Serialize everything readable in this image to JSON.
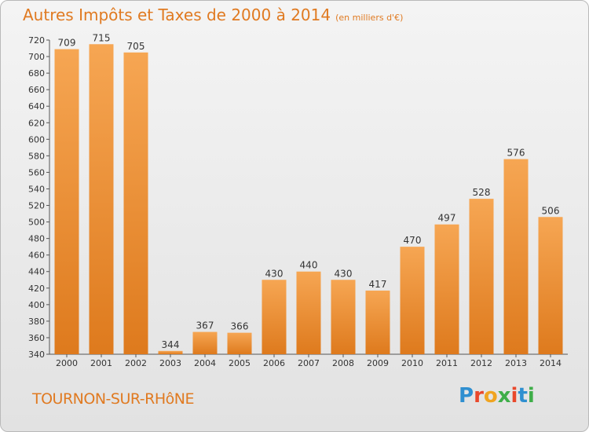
{
  "header": {
    "title": "Autres Impôts et Taxes de 2000 à 2014",
    "subtitle": "(en milliers d'€)"
  },
  "footer": {
    "place": "TOURNON-SUR-RHôNE",
    "logo": "Proxiti"
  },
  "colors": {
    "bar_light": "#f6a653",
    "bar_dark": "#de7a1d",
    "accent": "#e07a21",
    "axis_text": "#333333"
  },
  "chart_data": {
    "type": "bar",
    "categories": [
      "2000",
      "2001",
      "2002",
      "2003",
      "2004",
      "2005",
      "2006",
      "2007",
      "2008",
      "2009",
      "2010",
      "2011",
      "2012",
      "2013",
      "2014"
    ],
    "values": [
      709,
      715,
      705,
      344,
      367,
      366,
      430,
      440,
      430,
      417,
      470,
      497,
      528,
      576,
      506
    ],
    "title": "Autres Impôts et Taxes de 2000 à 2014",
    "xlabel": "",
    "ylabel": "",
    "ylim": [
      340,
      720
    ],
    "yticks": [
      340,
      360,
      380,
      400,
      420,
      440,
      460,
      480,
      500,
      520,
      540,
      560,
      580,
      600,
      620,
      640,
      660,
      680,
      700,
      720
    ],
    "grid": false,
    "data_labels": true
  }
}
